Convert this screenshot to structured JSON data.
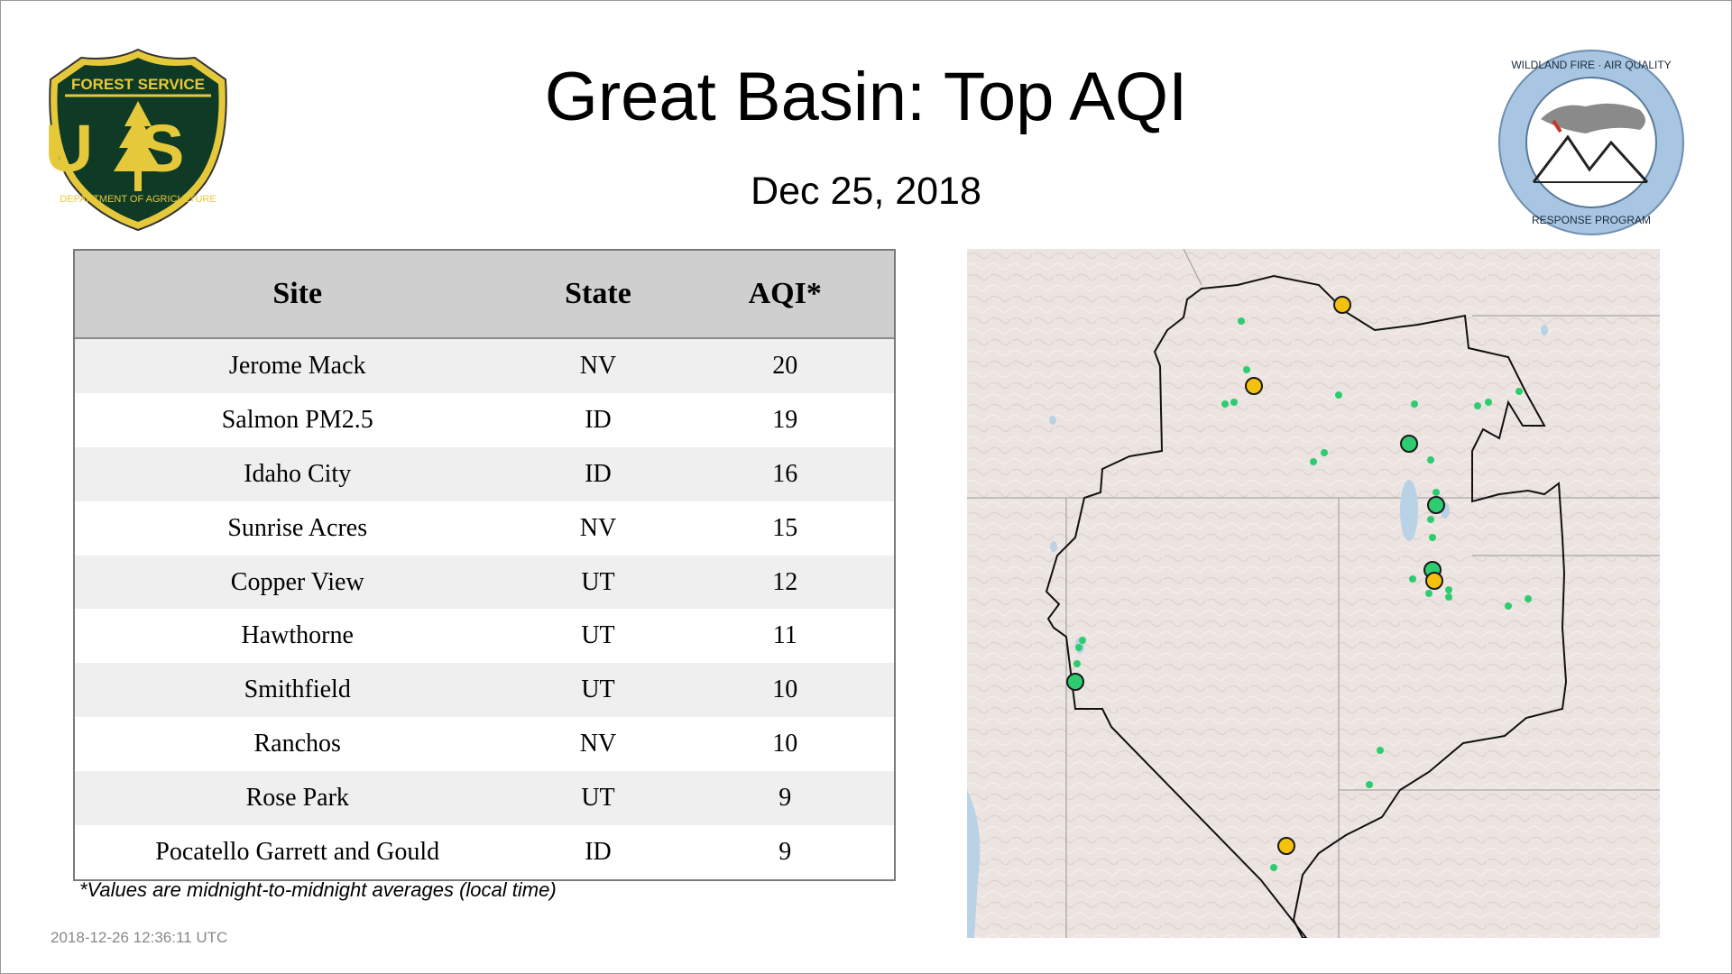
{
  "header": {
    "title": "Great Basin: Top AQI",
    "date": "Dec 25, 2018"
  },
  "logos": {
    "left": {
      "icon": "forest-service-shield-logo",
      "top_text": "FOREST SERVICE",
      "letters": "US",
      "bottom_text": "DEPARTMENT OF AGRICULTURE"
    },
    "right": {
      "icon": "wildland-fire-air-quality-logo",
      "top_text": "WILDLAND FIRE · AIR QUALITY",
      "bottom_text": "RESPONSE PROGRAM"
    }
  },
  "table": {
    "headers": {
      "site": "Site",
      "state": "State",
      "aqi": "AQI*"
    },
    "rows": [
      {
        "site": "Jerome Mack",
        "state": "NV",
        "aqi": "20"
      },
      {
        "site": "Salmon PM2.5",
        "state": "ID",
        "aqi": "19"
      },
      {
        "site": "Idaho City",
        "state": "ID",
        "aqi": "16"
      },
      {
        "site": "Sunrise Acres",
        "state": "NV",
        "aqi": "15"
      },
      {
        "site": "Copper View",
        "state": "UT",
        "aqi": "12"
      },
      {
        "site": "Hawthorne",
        "state": "UT",
        "aqi": "11"
      },
      {
        "site": "Smithfield",
        "state": "UT",
        "aqi": "10"
      },
      {
        "site": "Ranchos",
        "state": "NV",
        "aqi": "10"
      },
      {
        "site": "Rose Park",
        "state": "UT",
        "aqi": "9"
      },
      {
        "site": "Pocatello Garrett and Gould",
        "state": "ID",
        "aqi": "9"
      }
    ]
  },
  "footnote": "*Values are midnight-to-midnight averages (local time)",
  "timestamp": "2018-12-26 12:36:11 UTC",
  "map": {
    "colors": {
      "good": "#2ecc71",
      "moderate": "#f4c20d",
      "terrain": "#ece4e1",
      "water": "#b9d2e6",
      "outline": "#111111"
    }
  }
}
